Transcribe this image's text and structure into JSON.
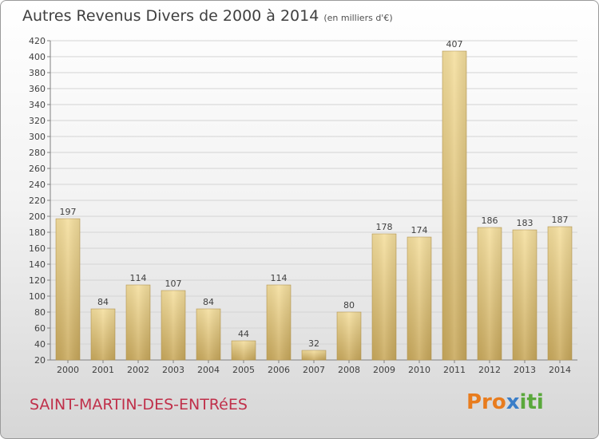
{
  "title": {
    "main": "Autres Revenus Divers de 2000 à 2014",
    "unit": "(en milliers d'€)"
  },
  "commune": "SAINT-MARTIN-DES-ENTRéES",
  "logo": {
    "text": "Proxiti",
    "colors": [
      "#e87c1e",
      "#3a7ec8",
      "#5aa83c"
    ]
  },
  "chart_data": {
    "type": "bar",
    "categories": [
      "2000",
      "2001",
      "2002",
      "2003",
      "2004",
      "2005",
      "2006",
      "2007",
      "2008",
      "2009",
      "2010",
      "2011",
      "2012",
      "2013",
      "2014"
    ],
    "values": [
      197,
      84,
      114,
      107,
      84,
      44,
      114,
      32,
      80,
      178,
      174,
      407,
      186,
      183,
      187
    ],
    "ylim": [
      20,
      420
    ],
    "yticks": [
      20,
      40,
      60,
      80,
      100,
      120,
      140,
      160,
      180,
      200,
      220,
      240,
      260,
      280,
      300,
      320,
      340,
      360,
      380,
      400,
      420
    ],
    "grid": true,
    "bar_color": "#e6cc80"
  }
}
